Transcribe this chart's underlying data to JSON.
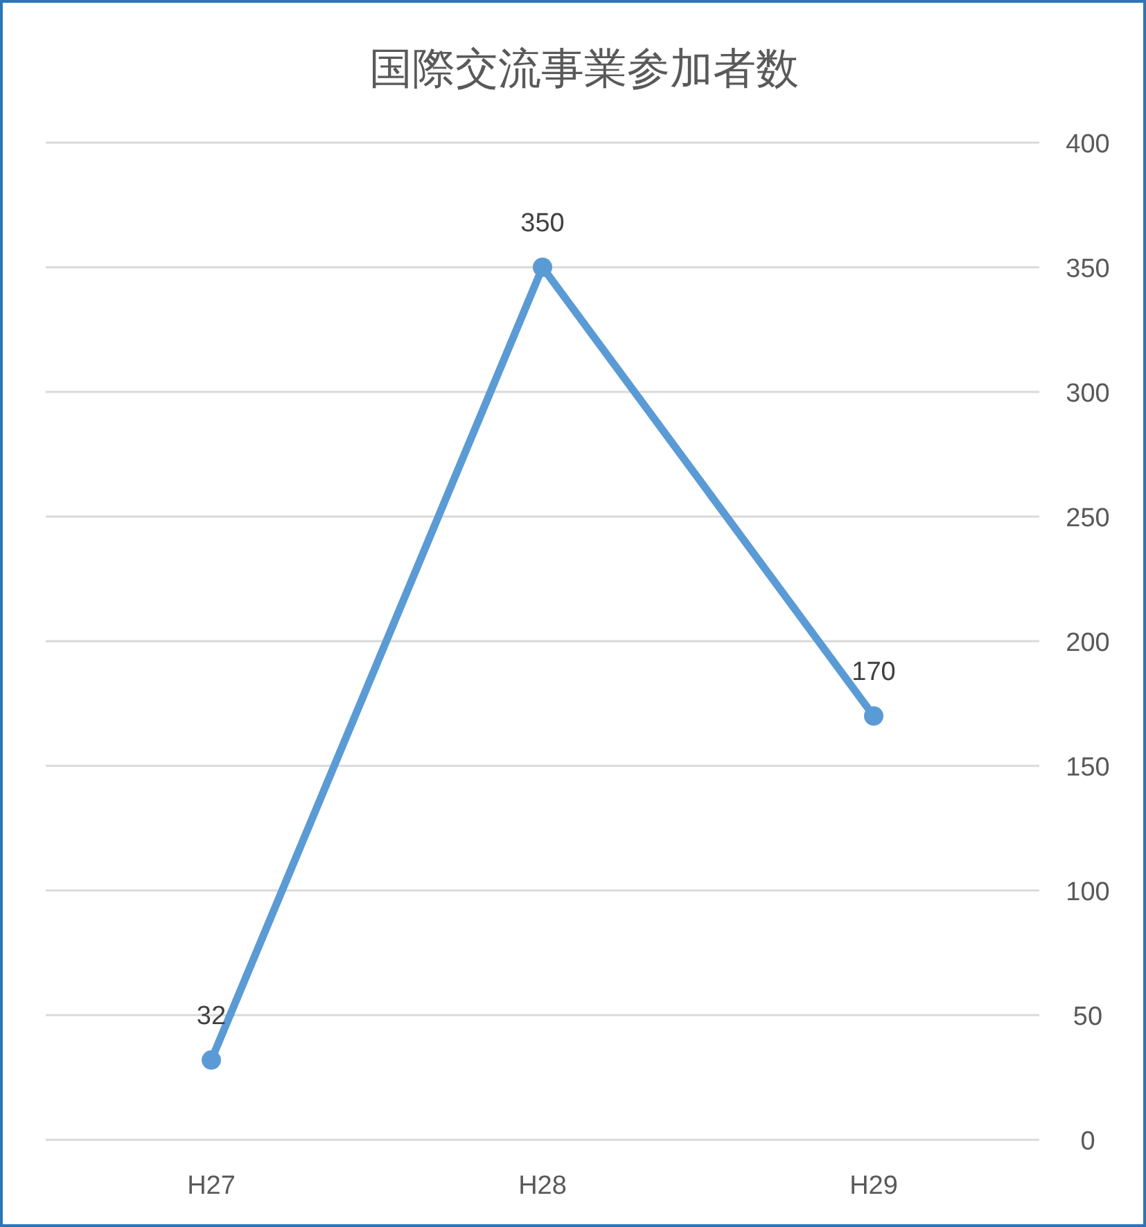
{
  "chart_data": {
    "type": "line",
    "title": "国際交流事業参加者数",
    "categories": [
      "H27",
      "H28",
      "H29"
    ],
    "series": [
      {
        "color": "#5b9bd5",
        "values": [
          32,
          350,
          170
        ]
      }
    ],
    "ylim": [
      0,
      400
    ],
    "yticks": [
      0,
      50,
      100,
      150,
      200,
      250,
      300,
      350,
      400
    ],
    "grid": "y",
    "marker": "circle",
    "line_style": "solid",
    "data_labels": true
  }
}
